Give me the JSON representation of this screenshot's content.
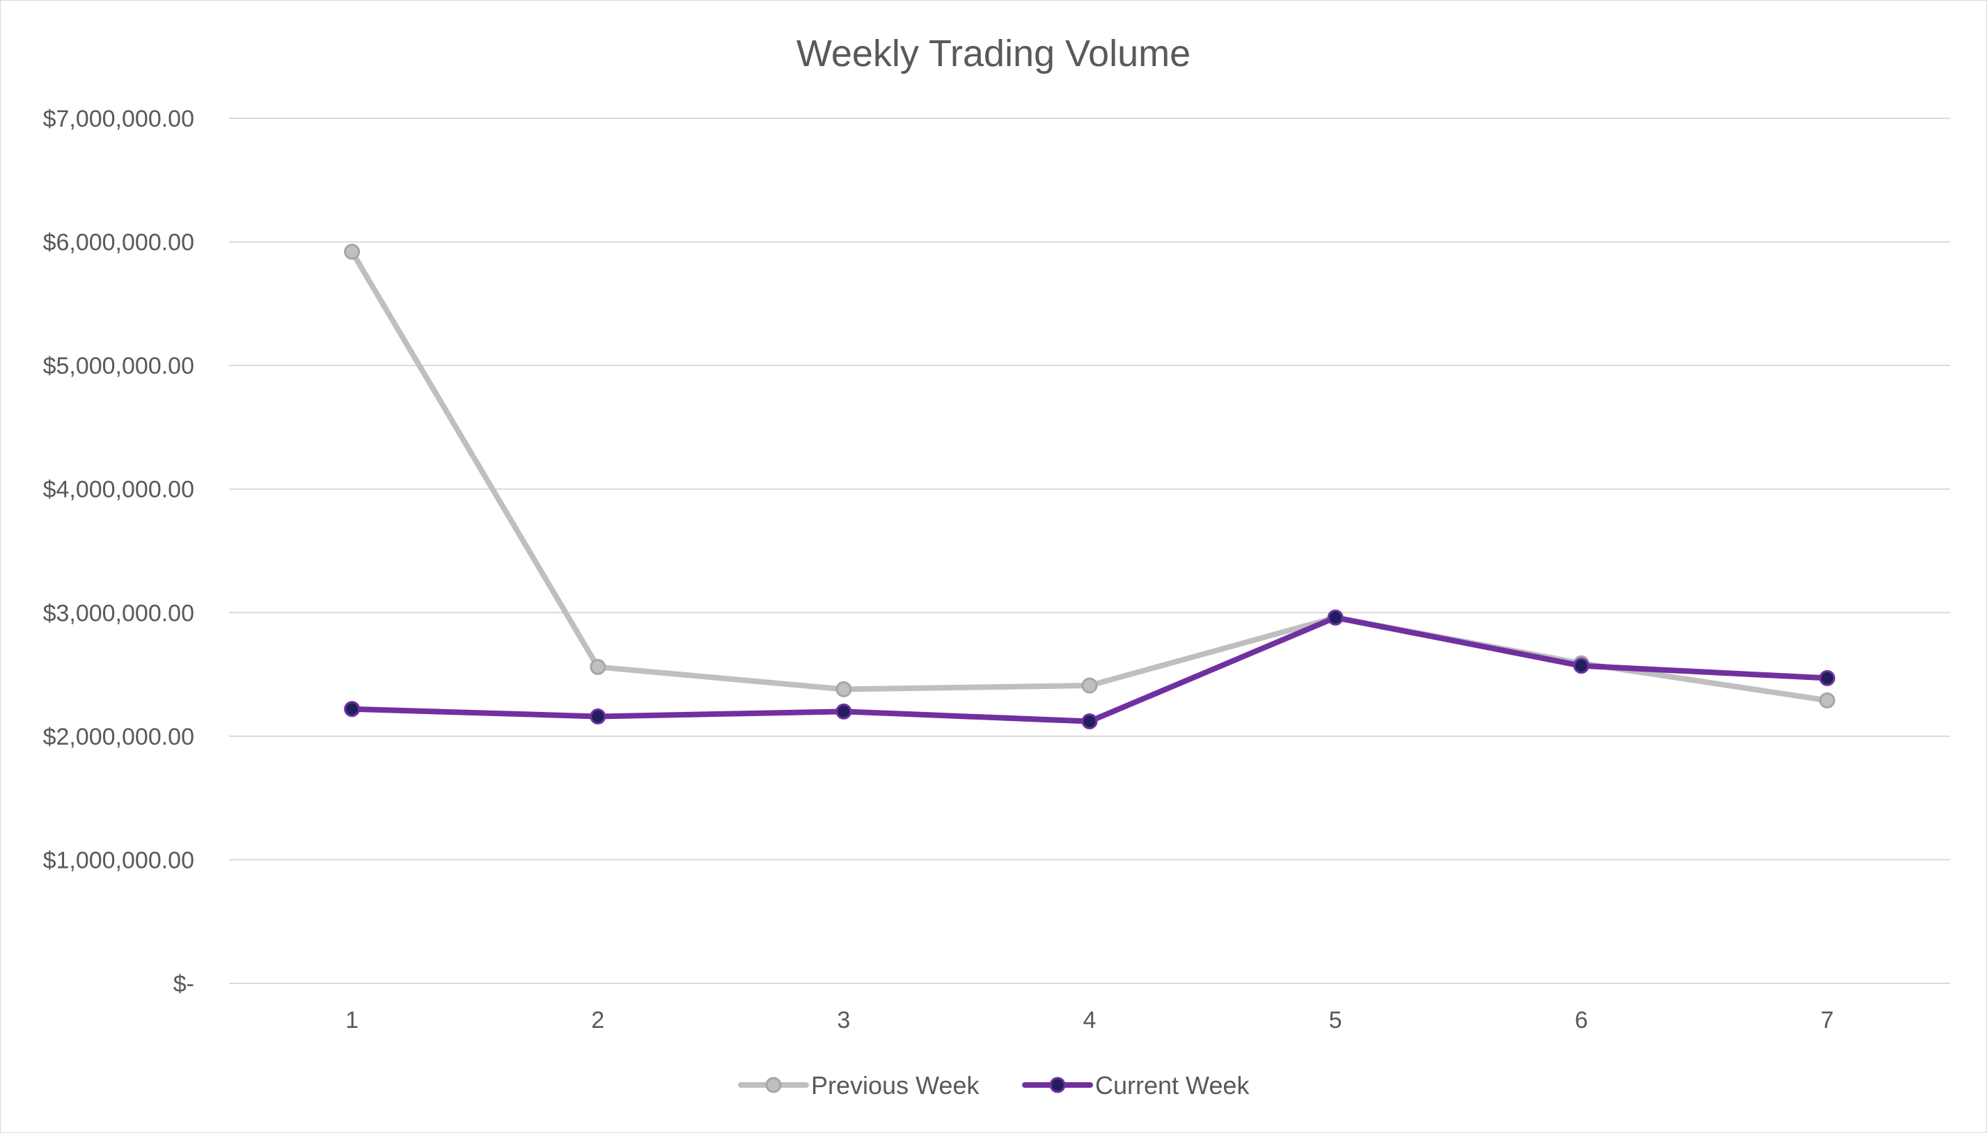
{
  "chart_data": {
    "type": "line",
    "title": "Weekly Trading Volume",
    "xlabel": "",
    "ylabel": "",
    "categories": [
      "1",
      "2",
      "3",
      "4",
      "5",
      "6",
      "7"
    ],
    "y_ticks": [
      0,
      1000000,
      2000000,
      3000000,
      4000000,
      5000000,
      6000000,
      7000000
    ],
    "y_tick_labels": [
      "$-",
      "$1,000,000.00",
      "$2,000,000.00",
      "$3,000,000.00",
      "$4,000,000.00",
      "$5,000,000.00",
      "$6,000,000.00",
      "$7,000,000.00"
    ],
    "ylim": [
      0,
      7000000
    ],
    "grid": true,
    "legend_position": "bottom",
    "series": [
      {
        "name": "Previous Week",
        "values": [
          5920000,
          2560000,
          2380000,
          2410000,
          2960000,
          2590000,
          2290000
        ],
        "color": "#bfbfbf",
        "marker_fill": "#bfbfbf",
        "marker_stroke": "#a6a6a6"
      },
      {
        "name": "Current Week",
        "values": [
          2220000,
          2160000,
          2200000,
          2120000,
          2960000,
          2570000,
          2470000
        ],
        "color": "#7030a0",
        "marker_fill": "#1f1f5c",
        "marker_stroke": "#7030a0"
      }
    ]
  }
}
